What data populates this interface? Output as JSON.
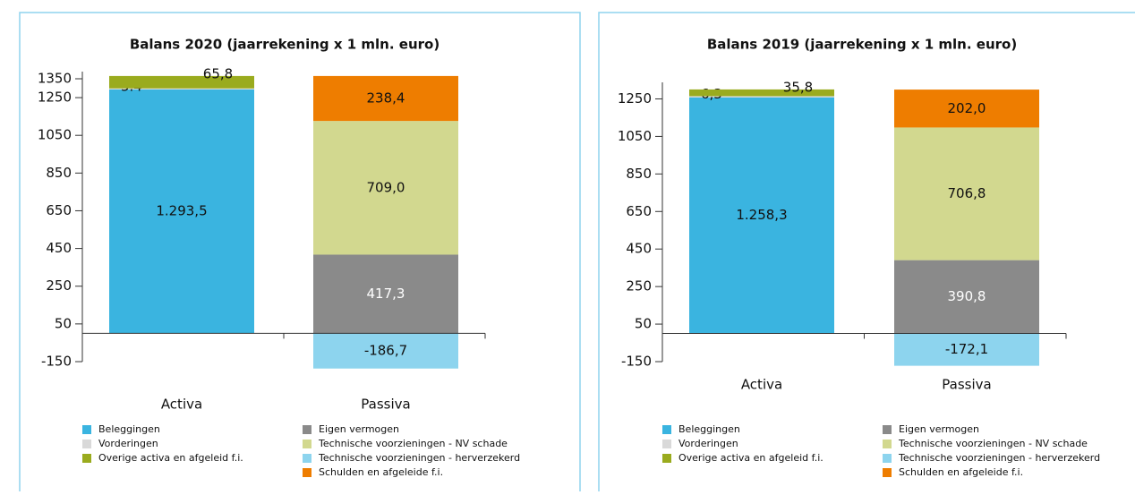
{
  "chart_data": [
    {
      "type": "bar",
      "stacked": true,
      "title": "Balans 2020 (jaarrekening x 1 mln. euro)",
      "categories": [
        "Activa",
        "Passiva"
      ],
      "ylim": [
        -150,
        1350
      ],
      "yticks": [
        -150,
        50,
        250,
        450,
        650,
        850,
        1050,
        1250,
        1350
      ],
      "series": [
        {
          "name": "Beleggingen",
          "color": "#3ab4e0",
          "values": [
            1293.5,
            null
          ],
          "value_labels": [
            "1.293,5",
            null
          ]
        },
        {
          "name": "Vorderingen",
          "color": "#d9d9d9",
          "values": [
            5.4,
            null
          ],
          "value_labels": [
            "5.4",
            null
          ]
        },
        {
          "name": "Overige activa en afgeleid f.i.",
          "color": "#9aab1e",
          "values": [
            65.8,
            null
          ],
          "value_labels": [
            "65,8",
            null
          ]
        },
        {
          "name": "Eigen vermogen",
          "color": "#8a8a8a",
          "values": [
            null,
            417.3
          ],
          "value_labels": [
            null,
            "417,3"
          ]
        },
        {
          "name": "Technische voorzieningen - NV schade",
          "color": "#d2d88f",
          "values": [
            null,
            709.0
          ],
          "value_labels": [
            null,
            "709,0"
          ]
        },
        {
          "name": "Technische voorzieningen - herverzekerd",
          "color": "#8dd4ee",
          "values": [
            null,
            -186.7
          ],
          "value_labels": [
            null,
            "-186,7"
          ]
        },
        {
          "name": "Schulden en afgeleide f.i.",
          "color": "#ee7d00",
          "values": [
            null,
            238.4
          ],
          "value_labels": [
            null,
            "238,4"
          ]
        }
      ]
    },
    {
      "type": "bar",
      "stacked": true,
      "title": "Balans 2019 (jaarrekening x 1 mln. euro)",
      "categories": [
        "Activa",
        "Passiva"
      ],
      "ylim": [
        -150,
        1300
      ],
      "yticks": [
        -150,
        50,
        250,
        450,
        650,
        850,
        1050,
        1250
      ],
      "series": [
        {
          "name": "Beleggingen",
          "color": "#3ab4e0",
          "values": [
            1258.3,
            null
          ],
          "value_labels": [
            "1.258,3",
            null
          ]
        },
        {
          "name": "Vorderingen",
          "color": "#d9d9d9",
          "values": [
            6.3,
            null
          ],
          "value_labels": [
            "6,3",
            null
          ]
        },
        {
          "name": "Overige activa en afgeleid f.i.",
          "color": "#9aab1e",
          "values": [
            35.8,
            null
          ],
          "value_labels": [
            "35,8",
            null
          ]
        },
        {
          "name": "Eigen vermogen",
          "color": "#8a8a8a",
          "values": [
            null,
            390.8
          ],
          "value_labels": [
            null,
            "390,8"
          ]
        },
        {
          "name": "Technische voorzieningen - NV schade",
          "color": "#d2d88f",
          "values": [
            null,
            706.8
          ],
          "value_labels": [
            null,
            "706,8"
          ]
        },
        {
          "name": "Technische voorzieningen - herverzekerd",
          "color": "#8dd4ee",
          "values": [
            null,
            -172.1
          ],
          "value_labels": [
            null,
            "-172,1"
          ]
        },
        {
          "name": "Schulden en afgeleide f.i.",
          "color": "#ee7d00",
          "values": [
            null,
            202.0
          ],
          "value_labels": [
            null,
            "202,0"
          ]
        }
      ]
    }
  ]
}
